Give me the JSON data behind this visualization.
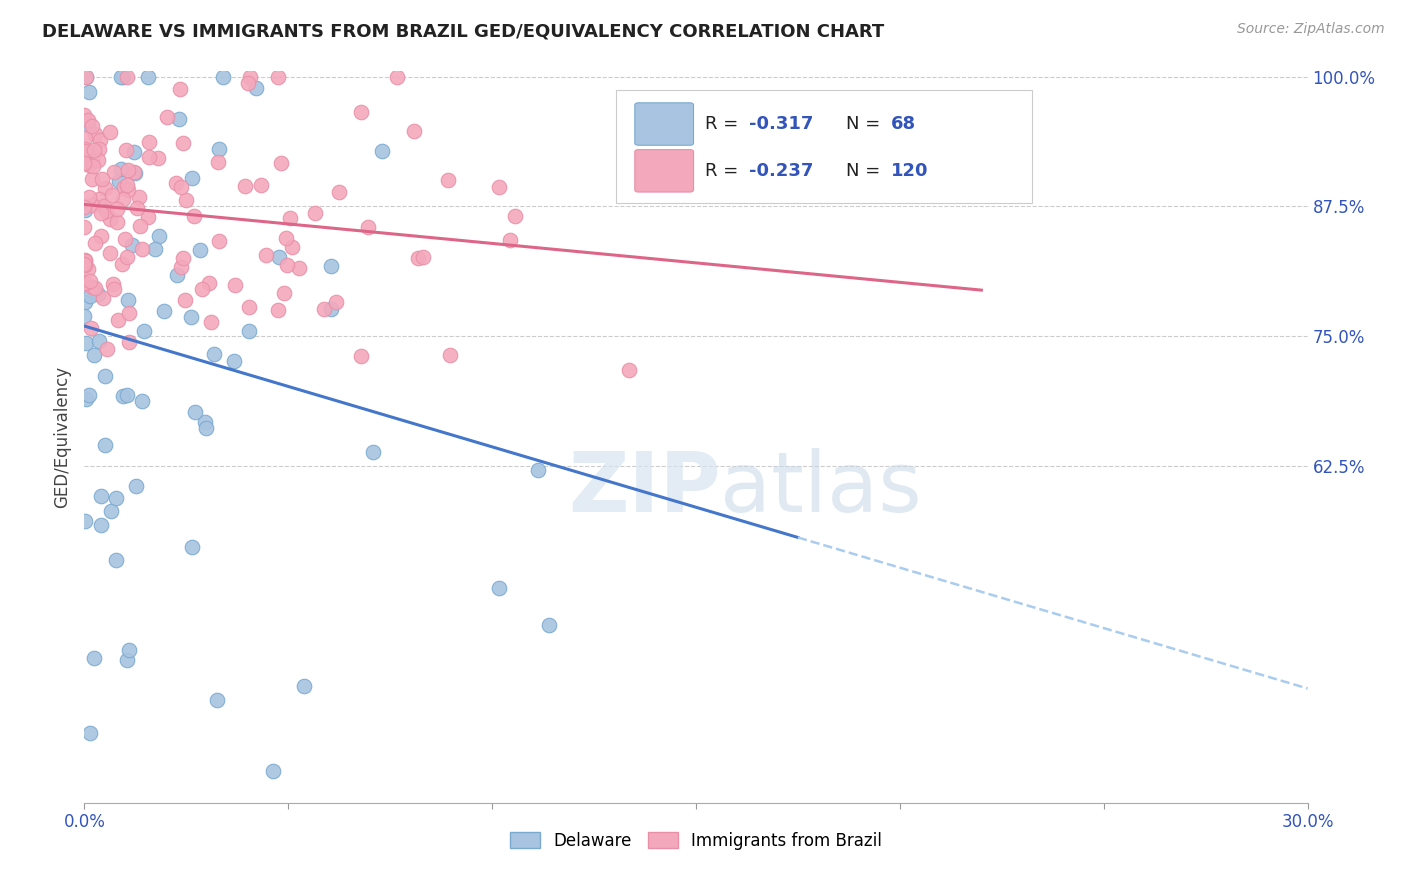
{
  "title": "DELAWARE VS IMMIGRANTS FROM BRAZIL GED/EQUIVALENCY CORRELATION CHART",
  "source": "Source: ZipAtlas.com",
  "ylabel": "GED/Equivalency",
  "x_min": 0.0,
  "x_max": 0.3,
  "y_min": 0.3,
  "y_max": 1.005,
  "x_tick_positions": [
    0.0,
    0.05,
    0.1,
    0.15,
    0.2,
    0.25,
    0.3
  ],
  "x_tick_labels": [
    "0.0%",
    "",
    "",
    "",
    "",
    "",
    "30.0%"
  ],
  "y_tick_positions": [
    0.625,
    0.75,
    0.875,
    1.0
  ],
  "y_tick_labels": [
    "62.5%",
    "75.0%",
    "87.5%",
    "100.0%"
  ],
  "delaware_color": "#a8c4e0",
  "brazil_color": "#f4a8bc",
  "delaware_edge": "#7aaad0",
  "brazil_edge": "#e890a8",
  "trend_del_color": "#4477cc",
  "trend_bra_color": "#dd6688",
  "trend_dash_color": "#aaccee",
  "legend_color": "#3355bb",
  "watermark_color": "#d8e4f0",
  "R_del": -0.317,
  "N_del": 68,
  "R_bra": -0.237,
  "N_bra": 120,
  "delaware_label": "Delaware",
  "brazil_label": "Immigrants from Brazil"
}
